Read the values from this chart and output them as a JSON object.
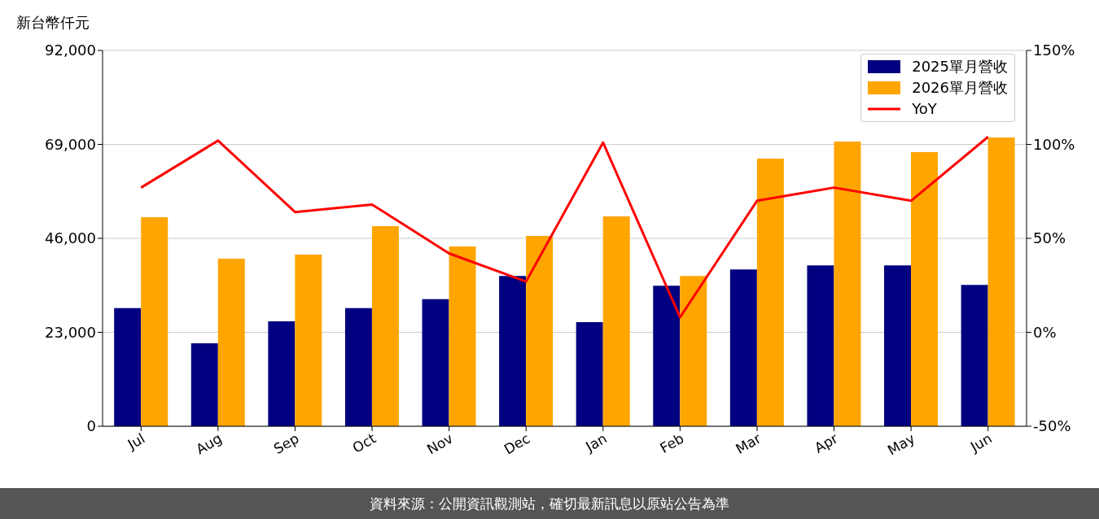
{
  "chart_data": {
    "type": "bar",
    "ylabel": "新台幣仟元",
    "categories": [
      "Jul",
      "Aug",
      "Sep",
      "Oct",
      "Nov",
      "Dec",
      "Jan",
      "Feb",
      "Mar",
      "Apr",
      "May",
      "Jun"
    ],
    "series": [
      {
        "name": "2025單月營收",
        "color": "#000080",
        "values": [
          28900,
          20300,
          25700,
          28900,
          31100,
          36800,
          25500,
          34400,
          38400,
          39400,
          39400,
          34600
        ]
      },
      {
        "name": "2026單月營收",
        "color": "#ffa500",
        "values": [
          51200,
          41000,
          42000,
          49000,
          44000,
          46600,
          51400,
          36800,
          65500,
          69700,
          67100,
          70700
        ]
      },
      {
        "name": "YoY",
        "type": "line",
        "axis": "y2",
        "color": "#ff0000",
        "values": [
          77,
          102,
          64,
          68,
          42,
          27,
          101,
          8,
          70,
          77,
          70,
          104
        ]
      }
    ],
    "ylim": [
      0,
      92000
    ],
    "yticks": [
      {
        "value": 0,
        "label": "0"
      },
      {
        "value": 23000,
        "label": "23,000"
      },
      {
        "value": 46000,
        "label": "46,000"
      },
      {
        "value": 69000,
        "label": "69,000"
      },
      {
        "value": 92000,
        "label": "92,000"
      }
    ],
    "y2lim": [
      -50,
      150
    ],
    "y2ticks": [
      {
        "value": -50,
        "label": "-50%"
      },
      {
        "value": 0,
        "label": "0%"
      },
      {
        "value": 50,
        "label": "50%"
      },
      {
        "value": 100,
        "label": "100%"
      },
      {
        "value": 150,
        "label": "150%"
      }
    ],
    "grid": "y",
    "legend": "top right",
    "marker": "none",
    "line_style": "solid",
    "annotations": [
      "資料來源：公開資訊觀測站，確切最新訊息以原站公告為準"
    ]
  }
}
